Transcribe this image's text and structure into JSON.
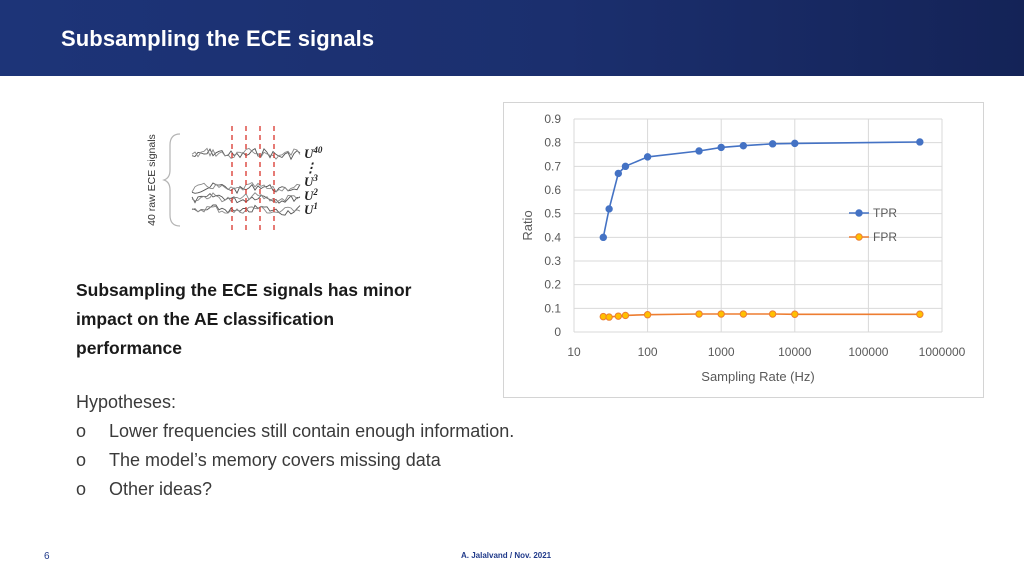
{
  "slide": {
    "title": "Subsampling the ECE signals",
    "diagram": {
      "side_label": "40 raw ECE signals",
      "labels": [
        {
          "base": "U",
          "sup": "40"
        },
        {
          "base": "⋮",
          "sup": ""
        },
        {
          "base": "U",
          "sup": "3"
        },
        {
          "base": "U",
          "sup": "2"
        },
        {
          "base": "U",
          "sup": "1"
        }
      ]
    },
    "summary_lines": [
      "Subsampling the ECE signals has minor",
      "impact on the AE classification",
      "performance"
    ],
    "hypotheses": {
      "heading": "Hypotheses:",
      "bullet": "o",
      "items": [
        "Lower frequencies still contain enough information.",
        "The model’s memory covers missing data",
        "Other ideas?"
      ]
    },
    "page_number": "6",
    "footer": "A. Jalalvand / Nov. 2021"
  },
  "chart_data": {
    "type": "line",
    "x_scale": "log",
    "xlabel": "Sampling Rate (Hz)",
    "ylabel": "Ratio",
    "xlim": [
      10,
      1000000
    ],
    "ylim": [
      0,
      0.9
    ],
    "x_ticks": [
      "10",
      "100",
      "1000",
      "10000",
      "100000",
      "1000000"
    ],
    "y_ticks": [
      "0",
      "0.1",
      "0.2",
      "0.3",
      "0.4",
      "0.5",
      "0.6",
      "0.7",
      "0.8",
      "0.9"
    ],
    "grid": true,
    "legend_position": "right",
    "x": [
      25,
      30,
      40,
      50,
      100,
      500,
      1000,
      2000,
      5000,
      10000,
      500000
    ],
    "series": [
      {
        "name": "TPR",
        "color": "#4472c4",
        "values": [
          0.4,
          0.52,
          0.67,
          0.7,
          0.74,
          0.765,
          0.78,
          0.787,
          0.795,
          0.797,
          0.803
        ]
      },
      {
        "name": "FPR",
        "color": "#ed7d31",
        "marker_fill": "#ffc000",
        "values": [
          0.065,
          0.063,
          0.067,
          0.07,
          0.073,
          0.076,
          0.076,
          0.076,
          0.076,
          0.075,
          0.075
        ]
      }
    ]
  }
}
